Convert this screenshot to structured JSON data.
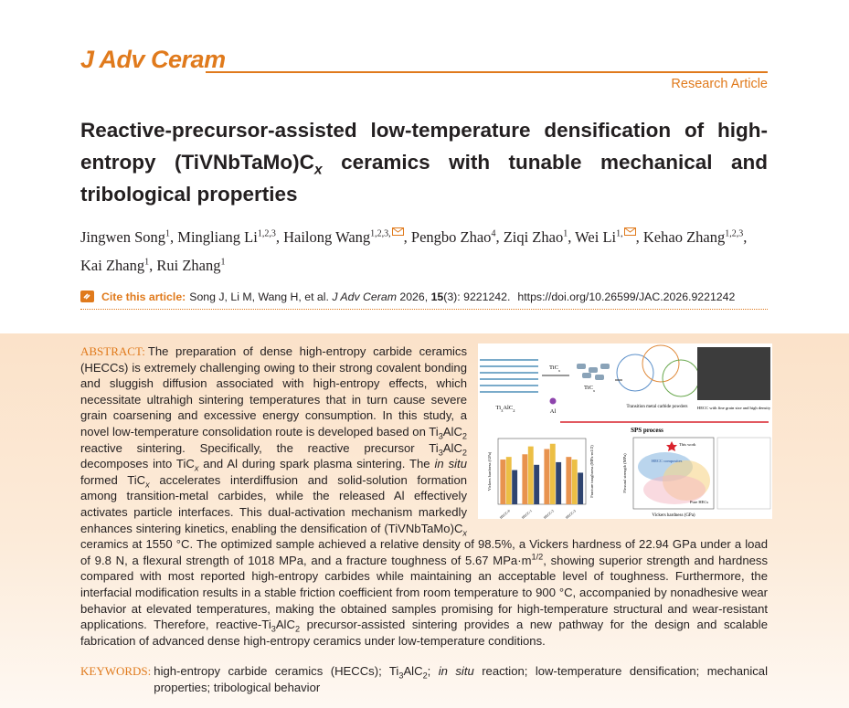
{
  "journal": "J Adv Ceram",
  "article_type": "Research Article",
  "title": [
    {
      "text": "Reactive-precursor-assisted low-temperature densification of high-entropy (TiVNbTaMo)C"
    },
    {
      "text": "x",
      "style": "isub"
    },
    {
      "text": " ceramics with tunable mechanical and tribological properties"
    }
  ],
  "authors": [
    {
      "name": "Jingwen Song",
      "affiliations": "1",
      "punct": ","
    },
    {
      "name": "Mingliang Li",
      "affiliations": "1,2,3",
      "punct": ","
    },
    {
      "name": "Hailong Wang",
      "affiliations": "1,2,3,",
      "corresponding": true,
      "punct": ","
    },
    {
      "name": "Pengbo Zhao",
      "affiliations": "4",
      "punct": ","
    },
    {
      "name": "Ziqi Zhao",
      "affiliations": "1",
      "punct": ","
    },
    {
      "name": "Wei Li",
      "affiliations": "1,",
      "corresponding": true,
      "punct": ","
    },
    {
      "name": "Kehao Zhang",
      "affiliations": "1,2,3",
      "punct": ","
    },
    {
      "name": "Kai Zhang",
      "affiliations": "1",
      "punct": ","
    },
    {
      "name": "Rui Zhang",
      "affiliations": "1"
    }
  ],
  "citation": {
    "label": "Cite this article:",
    "runs": [
      {
        "text": "Song J, Li M, Wang H, et al. "
      },
      {
        "text": "J Adv Ceram",
        "style": "i"
      },
      {
        "text": " 2026, "
      },
      {
        "text": "15",
        "style": "b"
      },
      {
        "text": "(3): 9221242."
      }
    ],
    "doi": "https://doi.org/10.26599/JAC.2026.9221242"
  },
  "abstract": {
    "label": "ABSTRACT:",
    "runs": [
      {
        "text": "The preparation of dense high-entropy carbide ceramics (HECCs) is extremely challenging owing to their strong covalent bonding and sluggish diffusion associated with high-entropy effects, which necessitate ultrahigh sintering temperatures that in turn cause severe grain coarsening and excessive energy consumption. In this study, a novel low-temperature consolidation route is developed based on Ti"
      },
      {
        "text": "3",
        "style": "sub"
      },
      {
        "text": "AlC"
      },
      {
        "text": "2",
        "style": "sub"
      },
      {
        "text": " reactive sintering. Specifically, the reactive precursor Ti"
      },
      {
        "text": "3",
        "style": "sub"
      },
      {
        "text": "AlC"
      },
      {
        "text": "2",
        "style": "sub"
      },
      {
        "text": " decomposes into TiC"
      },
      {
        "text": "x",
        "style": "isub"
      },
      {
        "text": " and Al during spark plasma sintering. The "
      },
      {
        "text": "in situ",
        "style": "i"
      },
      {
        "text": " formed TiC"
      },
      {
        "text": "x",
        "style": "isub"
      },
      {
        "text": " accelerates interdiffusion and solid-solution formation among transition-metal carbides, while the released Al effectively activates particle interfaces. This dual-activation mechanism markedly enhances sintering kinetics, enabling the densification of (TiVNbTaMo)C"
      },
      {
        "text": "x",
        "style": "isub"
      },
      {
        "text": " ceramics at 1550 °C. The optimized sample achieved a relative density of 98.5%, a Vickers hardness of 22.94 GPa under a load of 9.8 N, a flexural strength of 1018 MPa, and a fracture toughness of 5.67 MPa·m"
      },
      {
        "text": "1/2",
        "style": "sup"
      },
      {
        "text": ", showing superior strength and hardness compared with most reported high-entropy carbides while maintaining an acceptable level of toughness. Furthermore, the interfacial modification results in a stable friction coefficient from room temperature to 900 °C, accompanied by nonadhesive wear behavior at elevated temperatures, making the obtained samples promising for high-temperature structural and wear-resistant applications. Therefore, reactive-Ti"
      },
      {
        "text": "3",
        "style": "sub"
      },
      {
        "text": "AlC"
      },
      {
        "text": "2",
        "style": "sub"
      },
      {
        "text": " precursor-assisted sintering provides a new pathway for the design and scalable fabrication of advanced dense high-entropy ceramics under low-temperature conditions."
      }
    ]
  },
  "figure": {
    "precursor": [
      {
        "text": "Ti"
      },
      {
        "text": "3",
        "style": "sub"
      },
      {
        "text": "AlC"
      },
      {
        "text": "2",
        "style": "sub"
      }
    ],
    "tic": [
      {
        "text": "TiC"
      },
      {
        "text": "x",
        "style": "isub"
      }
    ],
    "al": [
      {
        "text": "Al"
      }
    ],
    "tic_formed": [
      {
        "text": "TiC"
      },
      {
        "text": "x",
        "style": "isub"
      }
    ],
    "powders": [
      {
        "text": "Transition metal carbide powders"
      }
    ],
    "product": [
      {
        "text": "HECC with fine grain size and high density"
      }
    ],
    "process": [
      {
        "text": "SPS process"
      }
    ],
    "bar_chart": {
      "ylabel": "Vickers hardness (GPa)",
      "y2label": "Fracture toughness (MPa·m1/2)",
      "categories": [
        "HECC-0",
        "HECC-1",
        "HECC-2",
        "HECC-3"
      ],
      "ylim": [
        0,
        25
      ],
      "series": [
        {
          "color": "#e8934f",
          "values": [
            17,
            19,
            21,
            18
          ]
        },
        {
          "color": "#ecbf45",
          "values": [
            18,
            22,
            23,
            17
          ]
        },
        {
          "color": "#2f4470",
          "values": [
            13,
            15,
            16,
            12
          ]
        }
      ]
    },
    "scatter": {
      "xlabel": "Vickers hardness (GPa)",
      "ylabel": "Flexural strength (MPa)",
      "this_work": "This work",
      "composites": "HECC composites",
      "pure": "Pure HECs"
    }
  },
  "keywords": {
    "label": "KEYWORDS:",
    "runs": [
      {
        "text": "high-entropy carbide ceramics (HECCs); Ti"
      },
      {
        "text": "3",
        "style": "sub"
      },
      {
        "text": "AlC"
      },
      {
        "text": "2",
        "style": "sub"
      },
      {
        "text": "; "
      },
      {
        "text": "in situ",
        "style": "i"
      },
      {
        "text": " reaction; low-temperature densification; mechanical properties; tribological behavior"
      }
    ]
  }
}
